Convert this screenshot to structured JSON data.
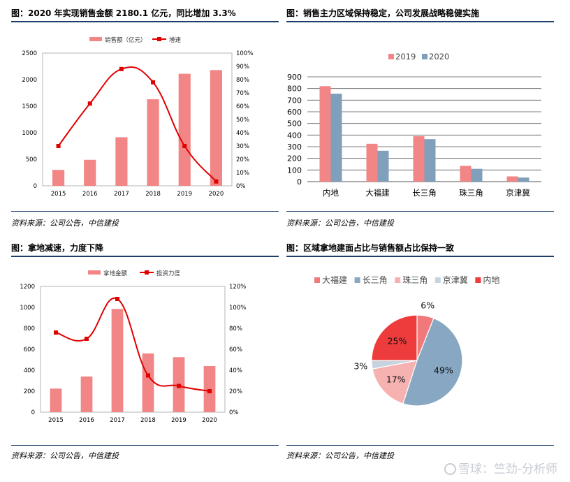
{
  "panels": [
    {
      "title": "图：2020 年实现销售金额 2180.1 亿元，同比增加 3.3%",
      "source": "资料来源：公司公告，中信建投"
    },
    {
      "title": "图：销售主力区域保持稳定，公司发展战略稳健实施",
      "source": "资料来源：公司公告，中信建投"
    },
    {
      "title": "图：拿地减速，力度下降",
      "source": "资料来源：公司公告，中信建投"
    },
    {
      "title": "图：区域拿地建面占比与销售额占比保持一致",
      "source": "资料来源：公司公告，中信建投"
    }
  ],
  "watermark": "雪球：竺劲-分析师",
  "colors": {
    "bar": "#f28585",
    "line": "#e00000",
    "bar2020": "#7f9fbb",
    "rule": "#1f3d6b"
  },
  "chart_data": [
    {
      "type": "bar",
      "categories": [
        "2015",
        "2016",
        "2017",
        "2018",
        "2019",
        "2020"
      ],
      "series": [
        {
          "name": "销售额（亿元）",
          "type": "bar",
          "axis": "left",
          "values": [
            300,
            490,
            915,
            1630,
            2110,
            2180
          ]
        },
        {
          "name": "增速",
          "type": "line",
          "axis": "right",
          "values": [
            30,
            62,
            88,
            78,
            30,
            3.3
          ]
        }
      ],
      "y_left": {
        "min": 0,
        "max": 2500,
        "ticks": [
          "0",
          "500",
          "1000",
          "1500",
          "2000",
          "2500"
        ]
      },
      "y_right": {
        "min": 0,
        "max": 100,
        "ticks": [
          "0%",
          "10%",
          "20%",
          "30%",
          "40%",
          "50%",
          "60%",
          "70%",
          "80%",
          "90%",
          "100%"
        ]
      },
      "legend_position": "top"
    },
    {
      "type": "bar",
      "categories": [
        "内地",
        "大福建",
        "长三角",
        "珠三角",
        "京津冀"
      ],
      "series": [
        {
          "name": "2019",
          "values": [
            820,
            325,
            390,
            135,
            45
          ]
        },
        {
          "name": "2020",
          "values": [
            755,
            265,
            365,
            110,
            35
          ]
        }
      ],
      "y": {
        "min": 0,
        "max": 900,
        "ticks": [
          "0",
          "100",
          "200",
          "300",
          "400",
          "500",
          "600",
          "700",
          "800",
          "900"
        ]
      },
      "grid": true,
      "legend_position": "top"
    },
    {
      "type": "bar",
      "categories": [
        "2015",
        "2016",
        "2017",
        "2018",
        "2019",
        "2020"
      ],
      "series": [
        {
          "name": "拿地金额",
          "type": "bar",
          "axis": "left",
          "values": [
            225,
            340,
            985,
            560,
            525,
            440
          ]
        },
        {
          "name": "投资力度",
          "type": "line",
          "axis": "right",
          "values": [
            76,
            70,
            108,
            35,
            25,
            20
          ]
        }
      ],
      "y_left": {
        "min": 0,
        "max": 1200,
        "ticks": [
          "0",
          "200",
          "400",
          "600",
          "800",
          "1000",
          "1200"
        ]
      },
      "y_right": {
        "min": 0,
        "max": 120,
        "ticks": [
          "0%",
          "20%",
          "40%",
          "60%",
          "80%",
          "100%",
          "120%"
        ]
      },
      "legend_position": "top"
    },
    {
      "type": "pie",
      "slices": [
        {
          "name": "大福建",
          "value": 6,
          "label": "6%",
          "color": "#f07a7a"
        },
        {
          "name": "长三角",
          "value": 49,
          "label": "49%",
          "color": "#87a7c3"
        },
        {
          "name": "珠三角",
          "value": 17,
          "label": "17%",
          "color": "#f6b1b1"
        },
        {
          "name": "京津冀",
          "value": 3,
          "label": "3%",
          "color": "#c7d4e0"
        },
        {
          "name": "内地",
          "value": 25,
          "label": "25%",
          "color": "#ee3b3b"
        }
      ],
      "legend_position": "top"
    }
  ]
}
